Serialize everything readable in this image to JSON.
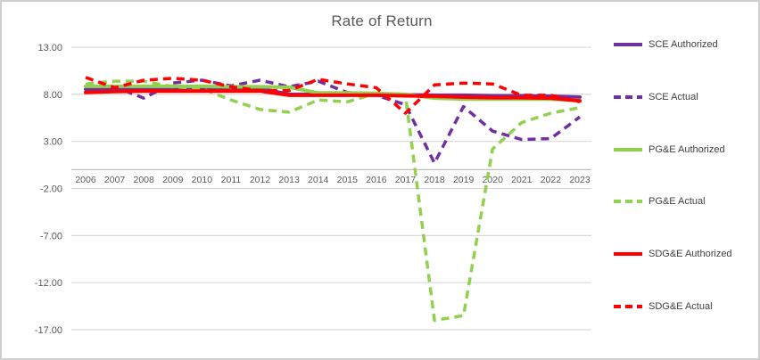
{
  "chart_data": {
    "type": "line",
    "title": "Rate of Return",
    "xlabel": "",
    "ylabel": "",
    "x": [
      2006,
      2007,
      2008,
      2009,
      2010,
      2011,
      2012,
      2013,
      2014,
      2015,
      2016,
      2017,
      2018,
      2019,
      2020,
      2021,
      2022,
      2023
    ],
    "ylim": [
      -17,
      13
    ],
    "y_ticks": [
      13,
      8,
      3,
      -2,
      -7,
      -12,
      -17
    ],
    "y_tick_labels": [
      "13.00",
      "8.00",
      "3.00",
      "-2.00",
      "-7.00",
      "-12.00",
      "-17.00"
    ],
    "grid": true,
    "legend_position": "right",
    "background_color": "#FFFFFF",
    "gridline_color": "#D9D9D9",
    "axis_line_color": "#BFBFBF",
    "text_color": "#595959",
    "legend_text_color": "#404040",
    "series": [
      {
        "name": "SCE Authorized",
        "color": "#7030A0",
        "style": "solid",
        "values": [
          8.55,
          8.55,
          8.6,
          8.6,
          8.6,
          8.6,
          8.6,
          8.0,
          8.0,
          8.0,
          7.95,
          7.95,
          7.9,
          7.9,
          7.85,
          7.85,
          7.8,
          7.7
        ]
      },
      {
        "name": "SCE Actual",
        "color": "#7030A0",
        "style": "dashed",
        "values": [
          8.4,
          8.8,
          7.6,
          9.2,
          9.5,
          8.9,
          9.5,
          8.8,
          9.4,
          8.2,
          7.9,
          6.9,
          0.7,
          6.7,
          4.1,
          3.2,
          3.3,
          5.6
        ]
      },
      {
        "name": "PG&E Authorized",
        "color": "#92D050",
        "style": "solid",
        "values": [
          8.85,
          8.85,
          8.85,
          8.85,
          8.85,
          8.8,
          8.8,
          8.75,
          8.15,
          8.15,
          8.1,
          8.0,
          7.6,
          7.5,
          7.5,
          7.5,
          7.5,
          7.35
        ]
      },
      {
        "name": "PG&E Actual",
        "color": "#92D050",
        "style": "dashed",
        "values": [
          9.1,
          9.4,
          9.4,
          8.8,
          8.6,
          7.4,
          6.4,
          6.1,
          7.4,
          7.2,
          8.1,
          7.9,
          -16.0,
          -15.5,
          2.2,
          5.0,
          6.0,
          6.6
        ]
      },
      {
        "name": "SDG&E Authorized",
        "color": "#FF0000",
        "style": "solid",
        "values": [
          8.2,
          8.3,
          8.35,
          8.35,
          8.35,
          8.35,
          8.35,
          7.9,
          7.9,
          7.9,
          7.9,
          7.85,
          7.8,
          7.7,
          7.65,
          7.65,
          7.6,
          7.3
        ]
      },
      {
        "name": "SDG&E Actual",
        "color": "#FF0000",
        "style": "dashed",
        "values": [
          9.8,
          8.7,
          9.5,
          9.7,
          9.5,
          8.8,
          8.4,
          8.4,
          9.6,
          9.1,
          8.7,
          6.0,
          9.0,
          9.2,
          9.1,
          7.9,
          7.9,
          7.2
        ]
      }
    ]
  }
}
